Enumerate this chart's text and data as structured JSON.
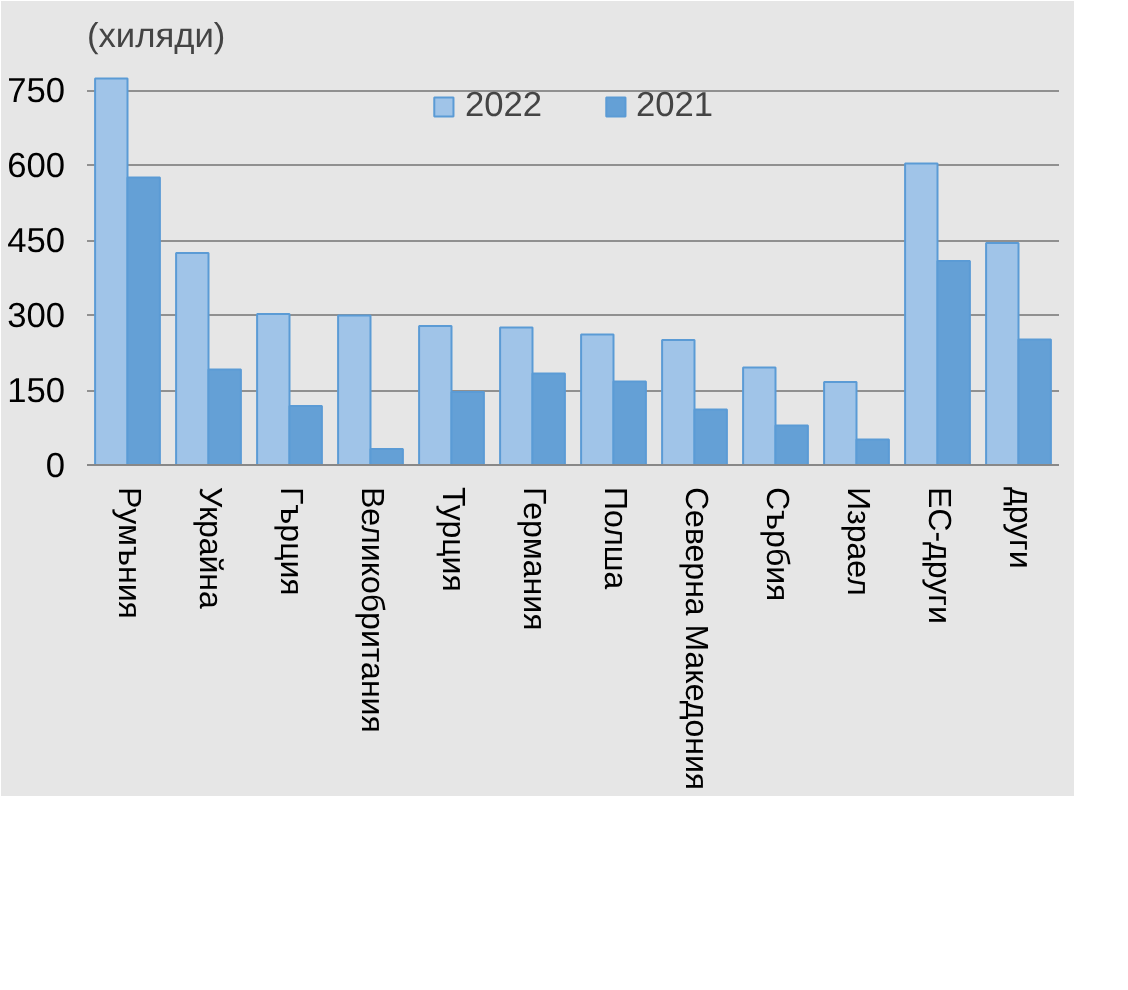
{
  "chart_data": {
    "type": "bar",
    "ylabel": "(хиляди)",
    "categories": [
      "Румъния",
      "Украйна",
      "Гърция",
      "Великобритания",
      "Турция",
      "Германия",
      "Полша",
      "Северна Македония",
      "Сърбия",
      "Израел",
      "ЕС-други",
      "други"
    ],
    "series": [
      {
        "name": "2022",
        "color": "#a0c4e8",
        "values": [
          773,
          424,
          302,
          299,
          278,
          275,
          261,
          250,
          195,
          166,
          603,
          444
        ]
      },
      {
        "name": "2021",
        "color": "#64a0d6",
        "values": [
          575,
          191,
          118,
          32,
          146,
          183,
          167,
          111,
          79,
          51,
          408,
          251
        ]
      }
    ],
    "ylim": [
      0,
      800
    ],
    "yticks": [
      0,
      150,
      300,
      450,
      600,
      750
    ],
    "grid": "y",
    "legend": "top"
  }
}
